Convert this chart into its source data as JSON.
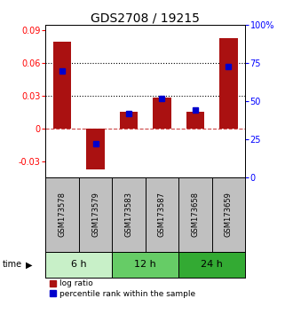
{
  "title": "GDS2708 / 19215",
  "samples": [
    "GSM173578",
    "GSM173579",
    "GSM173583",
    "GSM173587",
    "GSM173658",
    "GSM173659"
  ],
  "log_ratio": [
    0.08,
    -0.038,
    0.015,
    0.028,
    0.015,
    0.083
  ],
  "percentile_rank": [
    0.7,
    0.22,
    0.42,
    0.52,
    0.44,
    0.73
  ],
  "time_groups": [
    {
      "label": "6 h",
      "indices": [
        0,
        1
      ],
      "color": "#c8f0c8"
    },
    {
      "label": "12 h",
      "indices": [
        2,
        3
      ],
      "color": "#66cc66"
    },
    {
      "label": "24 h",
      "indices": [
        4,
        5
      ],
      "color": "#33aa33"
    }
  ],
  "bar_color": "#aa1111",
  "dot_color": "#0000cc",
  "ylim_left": [
    -0.045,
    0.095
  ],
  "ylim_right": [
    0,
    1.0
  ],
  "yticks_left": [
    -0.03,
    0,
    0.03,
    0.06,
    0.09
  ],
  "ytick_labels_left": [
    "-0.03",
    "0",
    "0.03",
    "0.06",
    "0.09"
  ],
  "yticks_right": [
    0.0,
    0.25,
    0.5,
    0.75,
    1.0
  ],
  "ytick_labels_right": [
    "0",
    "25",
    "50",
    "75",
    "100%"
  ],
  "hlines": [
    0.03,
    0.06
  ],
  "bar_width": 0.55,
  "dot_size": 25,
  "background_color": "#ffffff",
  "bar_color_dark": "#cc0000",
  "legend_log_ratio": "log ratio",
  "legend_percentile": "percentile rank within the sample",
  "time_label": "time",
  "sample_bg_color": "#c0c0c0",
  "title_fontsize": 10,
  "tick_fontsize": 7,
  "sample_fontsize": 6,
  "time_fontsize": 8,
  "legend_fontsize": 6.5
}
